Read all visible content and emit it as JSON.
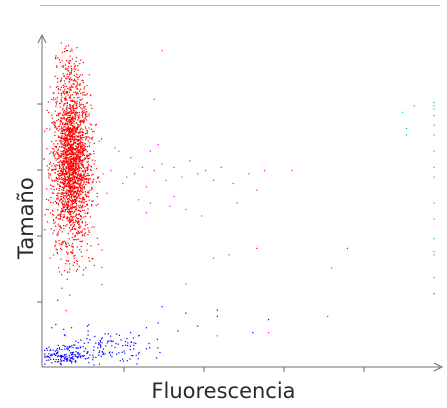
{
  "chart_data": {
    "type": "scatter",
    "title": "",
    "xlabel": "Fluorescencia",
    "ylabel": "Tamaño",
    "xlim": [
      0,
      10
    ],
    "ylim": [
      0,
      10
    ],
    "grid": false,
    "legend": "none",
    "series": [
      {
        "color": "#ff0000",
        "clusters": [
          {
            "n": 2000,
            "cx": 0.7,
            "cy": 6.1,
            "sx": 0.24,
            "sy": 1.1
          },
          {
            "n": 300,
            "cx": 0.65,
            "cy": 8.3,
            "sx": 0.2,
            "sy": 0.9
          },
          {
            "n": 60,
            "cx": 0.8,
            "cy": 3.5,
            "sx": 0.28,
            "sy": 0.6
          }
        ],
        "points": [
          [
            9.9,
            2.2
          ],
          [
            5.4,
            3.6
          ],
          [
            7.7,
            3.6
          ]
        ]
      },
      {
        "color": "#ff00ff",
        "points": [
          [
            1.3,
            6.3
          ],
          [
            1.5,
            5.9
          ],
          [
            1.7,
            6.0
          ],
          [
            1.9,
            6.6
          ],
          [
            2.0,
            5.6
          ],
          [
            2.1,
            5.8
          ],
          [
            2.2,
            6.4
          ],
          [
            2.3,
            5.9
          ],
          [
            2.5,
            6.1
          ],
          [
            2.6,
            5.5
          ],
          [
            2.7,
            5.0
          ],
          [
            2.8,
            6.0
          ],
          [
            3.0,
            6.2
          ],
          [
            3.1,
            5.7
          ],
          [
            3.3,
            6.1
          ],
          [
            3.5,
            5.8
          ],
          [
            3.7,
            6.3
          ],
          [
            3.9,
            5.9
          ],
          [
            4.1,
            6.0
          ],
          [
            4.3,
            5.7
          ],
          [
            4.5,
            6.1
          ],
          [
            4.8,
            5.6
          ],
          [
            5.2,
            5.9
          ],
          [
            5.6,
            6.0
          ],
          [
            6.3,
            6.0
          ],
          [
            3.3,
            5.2
          ],
          [
            2.4,
            5.1
          ],
          [
            1.6,
            5.3
          ],
          [
            1.4,
            6.9
          ],
          [
            2.9,
            6.8
          ],
          [
            2.6,
            4.7
          ],
          [
            4.0,
            4.6
          ],
          [
            3.6,
            4.8
          ],
          [
            1.8,
            6.7
          ],
          [
            2.7,
            6.6
          ],
          [
            3.2,
            4.9
          ],
          [
            4.7,
            3.4
          ],
          [
            4.3,
            3.3
          ],
          [
            3.6,
            2.5
          ],
          [
            4.4,
            0.9
          ],
          [
            5.7,
            1.0
          ],
          [
            7.2,
            1.5
          ],
          [
            7.3,
            3.0
          ],
          [
            5.4,
            5.4
          ],
          [
            4.9,
            5.0
          ],
          [
            2.8,
            8.2
          ],
          [
            3.0,
            9.7
          ]
        ]
      },
      {
        "color": "#0000ff",
        "clusters": [
          {
            "n": 150,
            "cx": 0.55,
            "cy": 0.3,
            "sx": 0.35,
            "sy": 0.14
          },
          {
            "n": 130,
            "cx": 1.4,
            "cy": 0.55,
            "sx": 0.6,
            "sy": 0.28
          }
        ],
        "points": [
          [
            0.2,
            1.15
          ],
          [
            0.3,
            1.25
          ],
          [
            0.5,
            1.1
          ],
          [
            0.7,
            1.15
          ],
          [
            1.1,
            1.2
          ],
          [
            2.2,
            1.0
          ],
          [
            2.6,
            1.15
          ],
          [
            2.9,
            1.3
          ],
          [
            3.4,
            1.05
          ],
          [
            3.6,
            1.6
          ],
          [
            3.9,
            1.2
          ],
          [
            3.0,
            1.8
          ],
          [
            4.4,
            1.5
          ],
          [
            4.4,
            1.7
          ],
          [
            5.3,
            1.0
          ],
          [
            5.7,
            1.4
          ],
          [
            2.0,
            0.6
          ],
          [
            2.4,
            0.9
          ],
          [
            2.6,
            0.5
          ],
          [
            0.35,
            2.0
          ]
        ]
      },
      {
        "color": "#00c0c0",
        "points": [
          [
            9.9,
            8.1
          ],
          [
            9.9,
            8.0
          ],
          [
            9.9,
            7.9
          ],
          [
            9.9,
            7.7
          ],
          [
            9.9,
            7.4
          ],
          [
            9.9,
            7.1
          ],
          [
            9.9,
            6.6
          ],
          [
            9.9,
            6.1
          ],
          [
            9.9,
            5.8
          ],
          [
            9.9,
            5.0
          ],
          [
            9.9,
            4.5
          ],
          [
            9.9,
            3.9
          ],
          [
            9.9,
            3.4
          ],
          [
            9.9,
            2.7
          ],
          [
            9.4,
            8.0
          ],
          [
            9.1,
            7.8
          ],
          [
            9.2,
            7.3
          ],
          [
            9.2,
            7.1
          ],
          [
            9.9,
            3.5
          ]
        ]
      }
    ]
  }
}
